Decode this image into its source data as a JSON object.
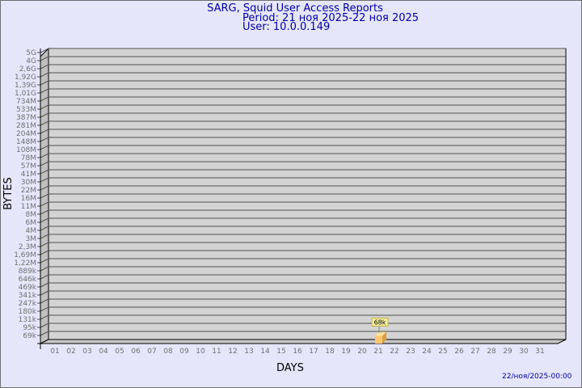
{
  "chart_data": {
    "type": "bar",
    "title": "SARG, Squid User Access Reports",
    "subtitle": [
      "Period: 21 ноя 2025-22 ноя 2025",
      "User: 10.0.0.149"
    ],
    "xlabel": "DAYS",
    "ylabel": "BYTES",
    "y_scale": "log",
    "y_ticks": [
      "69k",
      "95k",
      "131k",
      "180k",
      "247k",
      "341k",
      "469k",
      "646k",
      "889k",
      "1,22M",
      "1,69M",
      "2,3M",
      "3M",
      "4M",
      "6M",
      "8M",
      "11M",
      "16M",
      "22M",
      "30M",
      "41M",
      "57M",
      "78M",
      "108M",
      "148M",
      "204M",
      "281M",
      "387M",
      "533M",
      "734M",
      "1,01G",
      "1,39G",
      "1,92G",
      "2,6G",
      "4G",
      "5G"
    ],
    "categories": [
      "01",
      "02",
      "03",
      "04",
      "05",
      "06",
      "07",
      "08",
      "09",
      "10",
      "11",
      "12",
      "13",
      "14",
      "15",
      "16",
      "17",
      "18",
      "19",
      "20",
      "21",
      "22",
      "23",
      "24",
      "25",
      "26",
      "27",
      "28",
      "29",
      "30",
      "31"
    ],
    "bars": [
      {
        "day": "21",
        "value": 68000,
        "label": "68k"
      }
    ],
    "grid": true,
    "colors": {
      "bar": "#ffc870",
      "wall": "#d3d3d3",
      "title": "#0000a0"
    }
  },
  "footer": {
    "timestamp": "22/ноя/2025-00:00"
  }
}
